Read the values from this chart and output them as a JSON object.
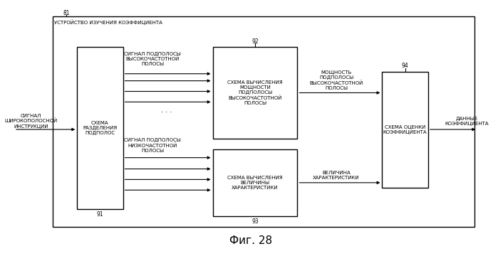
{
  "fig_width": 6.99,
  "fig_height": 3.67,
  "dpi": 100,
  "bg_color": "#ffffff",
  "title": "Фиг. 28",
  "title_fontsize": 11,
  "label_81": "81",
  "label_91": "91",
  "label_92": "92",
  "label_93": "93",
  "label_94": "94",
  "outer_box_label": "УСТРОЙСТВО ИЗУЧЕНИЯ КОЭФФИЦИЕНТА",
  "input_label": "СИГНАЛ\nШИРОКОПОЛОСНОЙ\nИНСТРУКЦИИ",
  "output_label": "ДАННЫЕ\nКОЭФФИЦИЕНТА",
  "box91_label": "СХЕМА\nРАЗДЕЛЕНИЯ\nПОДПОЛОС",
  "box92_label": "СХЕМА ВЫЧИСЛЕНИЯ\nМОЩНОСТИ\nПОДПОЛОСЫ\nВЫСОКОЧАСТОТНОЙ\nПОЛОСЫ",
  "box93_label": "СХЕМА ВЫЧИСЛЕНИЯ\nВЕЛИЧИНЫ\nХАРАКТЕРИСТИКИ",
  "box94_label": "СХЕМА ОЦЕНКИ\nКОЭФФИЦИЕНТА",
  "hf_signal_label": "СИГНАЛ ПОДПОЛОСЫ\nВЫСОКОЧАСТОТНОЙ\nПОЛОСЫ",
  "lf_signal_label": "СИГНАЛ ПОДПОЛОСЫ\nНИЗКОЧАСТОТНОЙ\nПОЛОСЫ",
  "power_label": "МОЩНОСТЬ\nПОДПОЛОСЫ\nВЫСОКОЧАСТОТНОЙ\nПОЛОСЫ",
  "magnitude_label": "ВЕЛИЧИНА\nХАРАКТЕРИСТИКИ",
  "font_size_box": 5.0,
  "font_size_label": 5.5,
  "font_size_signal": 5.0,
  "line_color": "#000000",
  "box_fill": "#ffffff",
  "box_edge": "#000000"
}
